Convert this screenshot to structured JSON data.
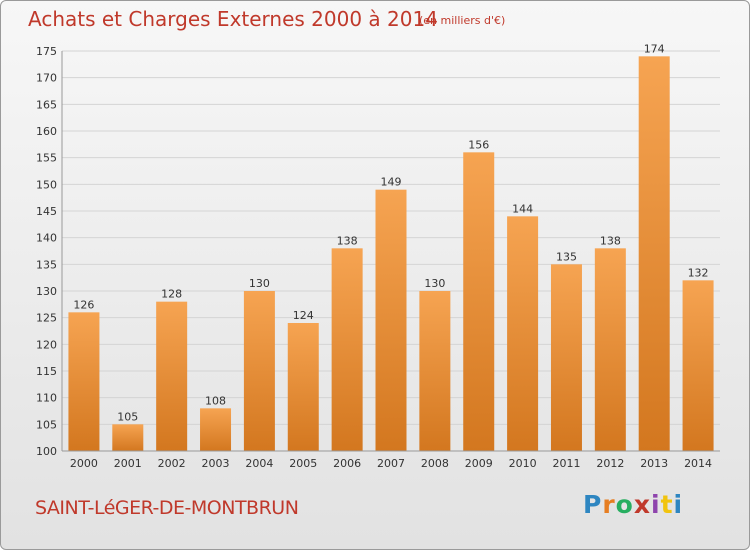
{
  "header": {
    "title": "Achats et Charges Externes 2000 à 2014",
    "subtitle": "(en milliers d'€)"
  },
  "footer": {
    "town": "SAINT-LéGER-DE-MONTBRUN",
    "logo": [
      "P",
      "r",
      "o",
      "x",
      "i",
      "t",
      "i"
    ],
    "logo_colors": [
      "#2e86c1",
      "#e67e22",
      "#27ae60",
      "#c0392b",
      "#8e44ad",
      "#f1c40f",
      "#2e86c1"
    ]
  },
  "chart_data": {
    "type": "bar",
    "categories": [
      "2000",
      "2001",
      "2002",
      "2003",
      "2004",
      "2005",
      "2006",
      "2007",
      "2008",
      "2009",
      "2010",
      "2011",
      "2012",
      "2013",
      "2014"
    ],
    "values": [
      126,
      105,
      128,
      108,
      130,
      124,
      138,
      149,
      130,
      156,
      144,
      135,
      138,
      174,
      132
    ],
    "title": "Achats et Charges Externes 2000 à 2014",
    "xlabel": "",
    "ylabel": "",
    "ylim": [
      100,
      175
    ],
    "yticks": [
      100,
      105,
      110,
      115,
      120,
      125,
      130,
      135,
      140,
      145,
      150,
      155,
      160,
      165,
      170,
      175
    ],
    "grid": true,
    "bar_color_top": "#f6a452",
    "bar_color_bottom": "#d3771f"
  }
}
